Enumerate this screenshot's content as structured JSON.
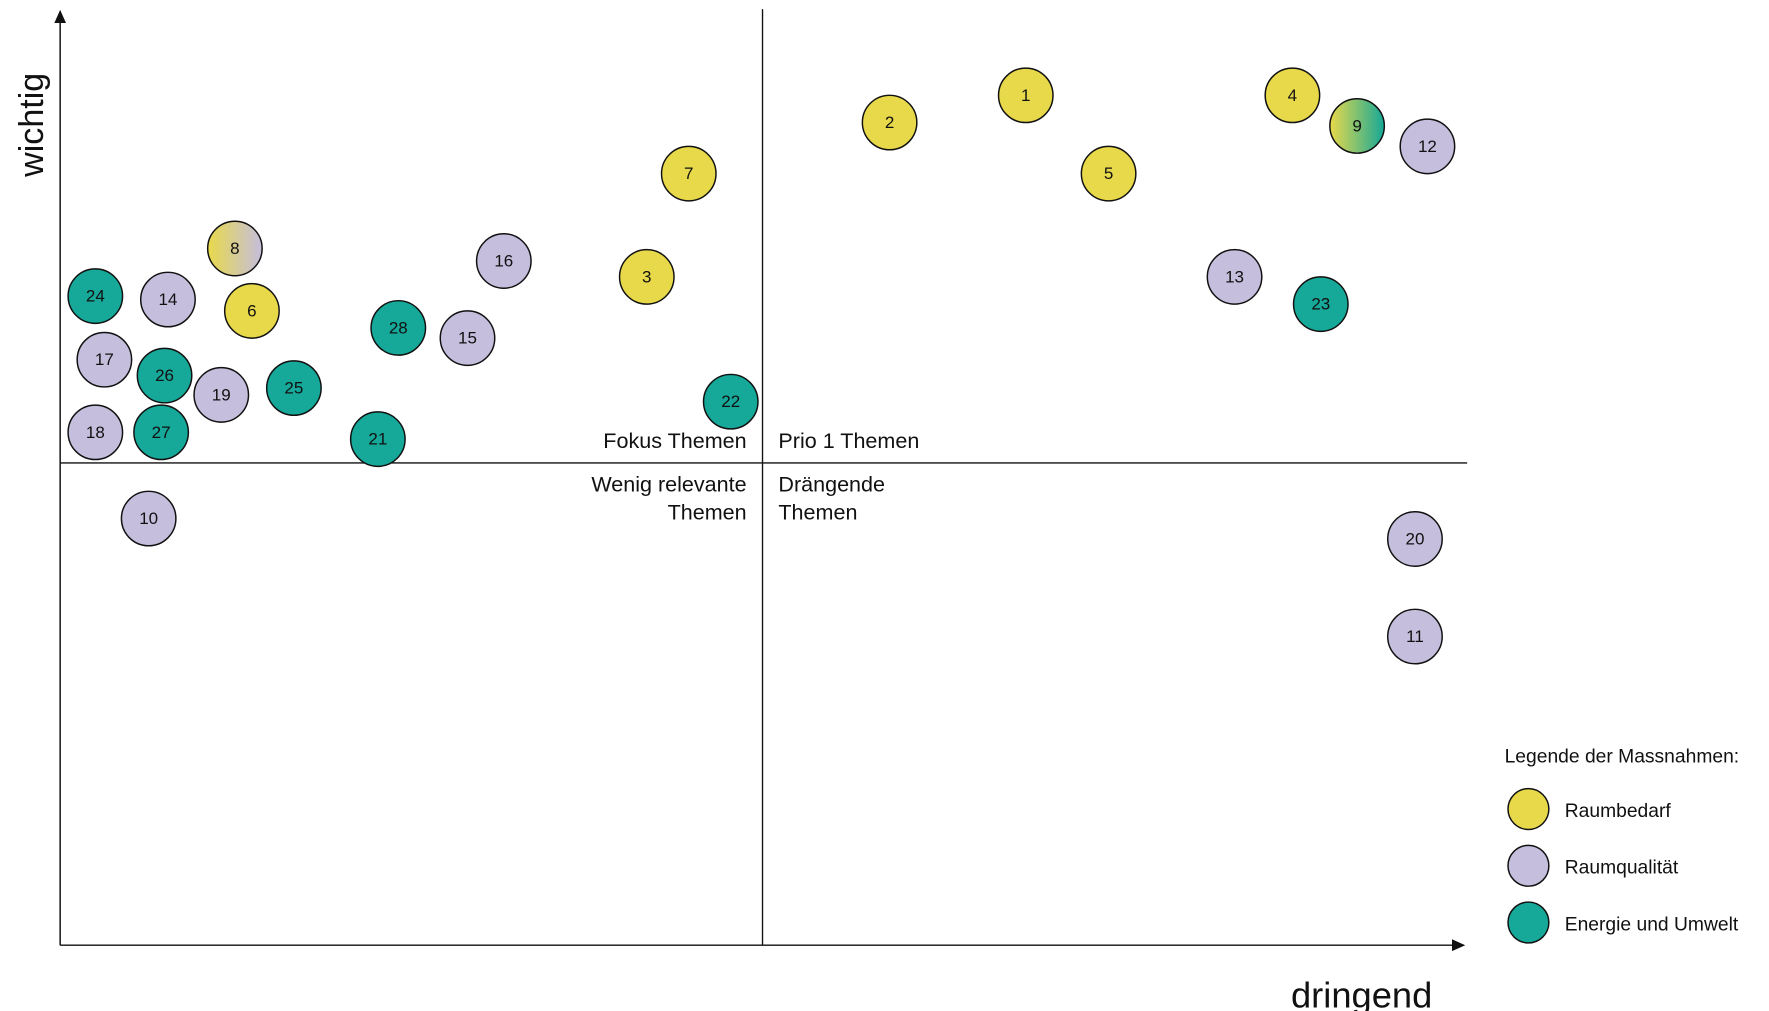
{
  "axes": {
    "y_label": "wichtig",
    "x_label": "dringend"
  },
  "quadrants": {
    "top_left": "Fokus Themen",
    "top_right": "Prio 1 Themen",
    "bottom_left": [
      "Wenig relevante",
      "Themen"
    ],
    "bottom_right": [
      "Drängende",
      "Themen"
    ]
  },
  "legend": {
    "title": "Legende der Massnahmen:",
    "items": [
      {
        "name": "Raumbedarf",
        "color": "#e8d94a"
      },
      {
        "name": "Raumqualität",
        "color": "#c5bedd"
      },
      {
        "name": "Energie und Umwelt",
        "color": "#16a898"
      }
    ]
  },
  "nodes": [
    {
      "label": "1",
      "colors": [
        "#e8d94a"
      ]
    },
    {
      "label": "2",
      "colors": [
        "#e8d94a"
      ]
    },
    {
      "label": "3",
      "colors": [
        "#e8d94a"
      ]
    },
    {
      "label": "4",
      "colors": [
        "#e8d94a"
      ]
    },
    {
      "label": "5",
      "colors": [
        "#e8d94a"
      ]
    },
    {
      "label": "6",
      "colors": [
        "#e8d94a"
      ]
    },
    {
      "label": "7",
      "colors": [
        "#e8d94a"
      ]
    },
    {
      "label": "8",
      "colors": [
        "#e8d94a",
        "#c5bedd"
      ]
    },
    {
      "label": "9",
      "colors": [
        "#e8d94a",
        "#16a898"
      ]
    },
    {
      "label": "10",
      "colors": [
        "#c5bedd"
      ]
    },
    {
      "label": "11",
      "colors": [
        "#c5bedd"
      ]
    },
    {
      "label": "12",
      "colors": [
        "#c5bedd"
      ]
    },
    {
      "label": "13",
      "colors": [
        "#c5bedd"
      ]
    },
    {
      "label": "14",
      "colors": [
        "#c5bedd"
      ]
    },
    {
      "label": "15",
      "colors": [
        "#c5bedd"
      ]
    },
    {
      "label": "16",
      "colors": [
        "#c5bedd"
      ]
    },
    {
      "label": "17",
      "colors": [
        "#c5bedd"
      ]
    },
    {
      "label": "18",
      "colors": [
        "#c5bedd"
      ]
    },
    {
      "label": "19",
      "colors": [
        "#c5bedd"
      ]
    },
    {
      "label": "20",
      "colors": [
        "#c5bedd"
      ]
    },
    {
      "label": "21",
      "colors": [
        "#16a898"
      ]
    },
    {
      "label": "22",
      "colors": [
        "#16a898"
      ]
    },
    {
      "label": "23",
      "colors": [
        "#16a898"
      ]
    },
    {
      "label": "24",
      "colors": [
        "#16a898"
      ]
    },
    {
      "label": "25",
      "colors": [
        "#16a898"
      ]
    },
    {
      "label": "26",
      "colors": [
        "#16a898"
      ]
    },
    {
      "label": "27",
      "colors": [
        "#16a898"
      ]
    },
    {
      "label": "28",
      "colors": [
        "#16a898"
      ]
    }
  ]
}
